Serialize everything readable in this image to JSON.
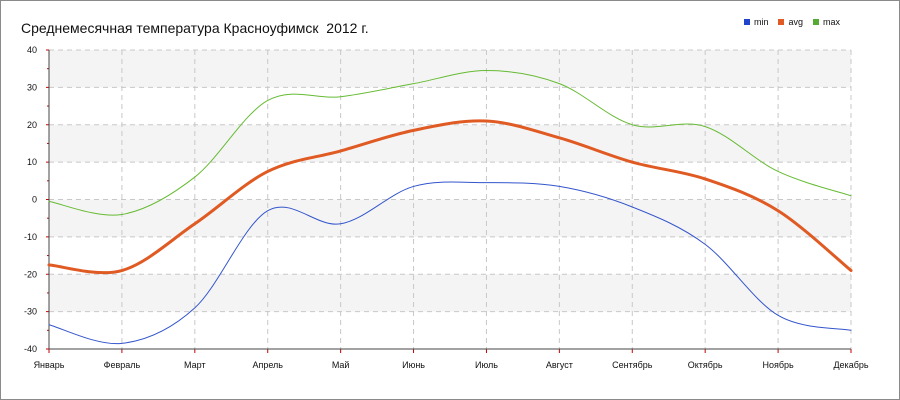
{
  "chart_data": {
    "type": "line",
    "title": "Среднемесячная температура Красноуфимск  2012 г.",
    "xlabel": "",
    "ylabel": "",
    "categories": [
      "Январь",
      "Февраль",
      "Март",
      "Апрель",
      "Май",
      "Июнь",
      "Июль",
      "Август",
      "Сентябрь",
      "Октябрь",
      "Ноябрь",
      "Декабрь"
    ],
    "ylim": [
      -40,
      40
    ],
    "yticks": [
      -40,
      -30,
      -20,
      -10,
      0,
      10,
      20,
      30,
      40
    ],
    "grid": true,
    "legend_position": "top-right",
    "series": [
      {
        "name": "min",
        "color": "#3355cc",
        "values": [
          -33.5,
          -38.5,
          -29,
          -3,
          -6.5,
          3.5,
          4.5,
          3.5,
          -2.0,
          -12.0,
          -31.0,
          -35.0
        ]
      },
      {
        "name": "avg",
        "color": "#e05a23",
        "values": [
          -17.5,
          -19.0,
          -6.5,
          7.5,
          13.0,
          18.5,
          21.0,
          16.5,
          10.0,
          5.5,
          -3.0,
          -19.0
        ]
      },
      {
        "name": "max",
        "color": "#66bb33",
        "values": [
          -0.5,
          -4.0,
          6.0,
          26.5,
          27.5,
          31.0,
          34.5,
          31.0,
          20.0,
          19.5,
          7.5,
          1.0
        ]
      }
    ]
  },
  "legend": [
    {
      "label": "min",
      "color": "#2244cc"
    },
    {
      "label": "avg",
      "color": "#e05a23"
    },
    {
      "label": "max",
      "color": "#55aa33"
    }
  ]
}
